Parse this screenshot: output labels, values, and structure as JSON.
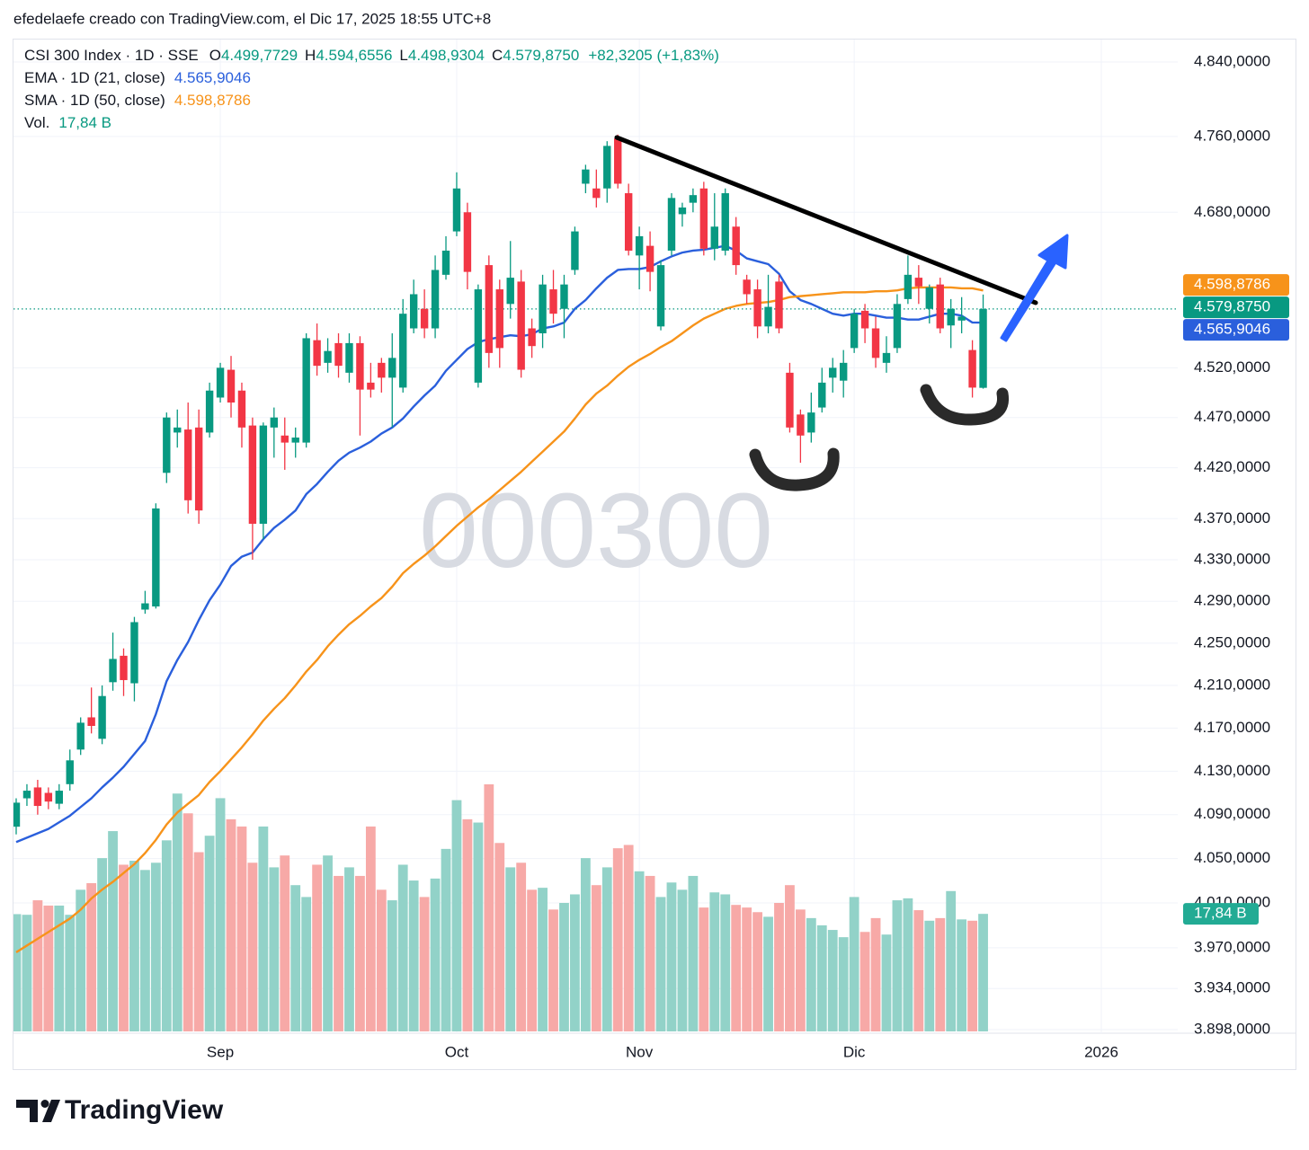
{
  "header": {
    "text": "efedelaefe creado con TradingView.com, el Dic 17, 2025 18:55 UTC+8"
  },
  "footer": {
    "brand": "TradingView"
  },
  "chart_data": {
    "type": "candlestick",
    "title": "CSI 300 Index · 1D · SSE",
    "watermark": "000300",
    "legend_ohlc": [
      {
        "key": "O",
        "label": "4.499,7729"
      },
      {
        "key": "H",
        "label": "4.594,6556"
      },
      {
        "key": "L",
        "label": "4.498,9304"
      },
      {
        "key": "C",
        "label": "4.579,8750"
      }
    ],
    "change_label": "+82,3205 (+1,83%)",
    "up_color": "#089981",
    "down_color": "#f23645",
    "up_volume_color": "#92d2c8",
    "down_volume_color": "#f7a9a7",
    "ylog": true,
    "grid": true,
    "ylim": [
      3898,
      4840
    ],
    "yticks": [
      {
        "value": 4840,
        "label": "4.840,0000"
      },
      {
        "value": 4760,
        "label": "4.760,0000"
      },
      {
        "value": 4680,
        "label": "4.680,0000"
      },
      {
        "value": 4520,
        "label": "4.520,0000"
      },
      {
        "value": 4470,
        "label": "4.470,0000"
      },
      {
        "value": 4420,
        "label": "4.420,0000"
      },
      {
        "value": 4370,
        "label": "4.370,0000"
      },
      {
        "value": 4330,
        "label": "4.330,0000"
      },
      {
        "value": 4290,
        "label": "4.290,0000"
      },
      {
        "value": 4250,
        "label": "4.250,0000"
      },
      {
        "value": 4210,
        "label": "4.210,0000"
      },
      {
        "value": 4170,
        "label": "4.170,0000"
      },
      {
        "value": 4130,
        "label": "4.130,0000"
      },
      {
        "value": 4090,
        "label": "4.090,0000"
      },
      {
        "value": 4050,
        "label": "4.050,0000"
      },
      {
        "value": 4010,
        "label": "4.010,0000"
      },
      {
        "value": 3970,
        "label": "3.970,0000"
      },
      {
        "value": 3934,
        "label": "3.934,0000"
      },
      {
        "value": 3898,
        "label": "3.898,0000"
      }
    ],
    "categories": [
      null,
      null,
      null,
      null,
      null,
      null,
      null,
      null,
      null,
      null,
      null,
      null,
      null,
      null,
      null,
      null,
      null,
      null,
      null,
      "Sep",
      null,
      null,
      null,
      null,
      null,
      null,
      null,
      null,
      null,
      null,
      null,
      null,
      null,
      null,
      null,
      null,
      null,
      null,
      null,
      null,
      null,
      "Oct",
      null,
      null,
      null,
      null,
      null,
      null,
      null,
      null,
      null,
      null,
      null,
      null,
      null,
      null,
      null,
      null,
      "Nov",
      null,
      null,
      null,
      null,
      null,
      null,
      null,
      null,
      null,
      null,
      null,
      null,
      null,
      null,
      null,
      null,
      null,
      null,
      null,
      "Dic",
      null,
      null,
      null,
      null,
      null,
      null,
      null,
      null,
      null,
      null,
      null,
      null,
      null,
      null,
      null,
      null,
      null,
      null,
      null,
      null,
      null,
      null,
      "2026"
    ],
    "open": [
      4079,
      4105,
      4115,
      4110,
      4100,
      4118,
      4150,
      4180,
      4160,
      4213,
      4238,
      4212,
      4282,
      4285,
      4415,
      4455,
      4458,
      4460,
      4455,
      4490,
      4518,
      4497,
      4462,
      4365,
      4460,
      4452,
      4445,
      4445,
      4548,
      4525,
      4545,
      4515,
      4545,
      4505,
      4525,
      4510,
      4500,
      4560,
      4580,
      4560,
      4615,
      4660,
      4680,
      4505,
      4625,
      4600,
      4585,
      4608,
      4560,
      4555,
      4600,
      4580,
      4620,
      4710,
      4705,
      4705,
      4758,
      4700,
      4635,
      4645,
      4562,
      4640,
      4678,
      4690,
      4705,
      4642,
      4640,
      4665,
      4610,
      4600,
      4562,
      4608,
      4515,
      4473,
      4455,
      4480,
      4510,
      4507,
      4540,
      4578,
      4560,
      4525,
      4540,
      4590,
      4612,
      4580,
      4605,
      4563,
      4568,
      4538,
      4499.7729,
      null,
      null,
      null,
      null,
      null,
      null,
      null,
      null,
      null,
      null,
      null
    ],
    "high": [
      4105,
      4118,
      4122,
      4115,
      4118,
      4150,
      4180,
      4208,
      4210,
      4260,
      4245,
      4275,
      4300,
      4385,
      4475,
      4478,
      4485,
      4478,
      4505,
      4525,
      4532,
      4505,
      4470,
      4465,
      4480,
      4470,
      4460,
      4555,
      4565,
      4550,
      4555,
      4555,
      4552,
      4525,
      4530,
      4555,
      4590,
      4610,
      4600,
      4635,
      4655,
      4722,
      4690,
      4605,
      4635,
      4610,
      4650,
      4620,
      4570,
      4615,
      4620,
      4615,
      4665,
      4730,
      4725,
      4755,
      4762,
      4710,
      4665,
      4660,
      4630,
      4700,
      4690,
      4705,
      4712,
      4700,
      4705,
      4675,
      4615,
      4610,
      4615,
      4615,
      4525,
      4478,
      4495,
      4520,
      4530,
      4538,
      4580,
      4585,
      4572,
      4552,
      4595,
      4635,
      4625,
      4605,
      4612,
      4590,
      4592,
      4548,
      4594.6556,
      null,
      null,
      null,
      null,
      null,
      null,
      null,
      null,
      null,
      null,
      null
    ],
    "low": [
      4072,
      4098,
      4090,
      4095,
      4095,
      4112,
      4145,
      4165,
      4155,
      4205,
      4200,
      4195,
      4278,
      4283,
      4405,
      4440,
      4375,
      4365,
      4450,
      4485,
      4470,
      4440,
      4330,
      4350,
      4430,
      4418,
      4430,
      4440,
      4512,
      4515,
      4510,
      4505,
      4452,
      4490,
      4495,
      4460,
      4495,
      4555,
      4550,
      4550,
      4610,
      4655,
      4600,
      4500,
      4520,
      4520,
      4570,
      4510,
      4530,
      4540,
      4565,
      4550,
      4615,
      4700,
      4685,
      4690,
      4705,
      4635,
      4600,
      4598,
      4558,
      4635,
      4665,
      4680,
      4635,
      4630,
      4635,
      4615,
      4585,
      4550,
      4555,
      4555,
      4455,
      4425,
      4445,
      4475,
      4495,
      4490,
      4535,
      4545,
      4520,
      4515,
      4535,
      4585,
      4585,
      4565,
      4555,
      4540,
      4555,
      4490,
      4498.9304,
      null,
      null,
      null,
      null,
      null,
      null,
      null,
      null,
      null,
      null,
      null
    ],
    "close": [
      4101,
      4112,
      4098,
      4102,
      4112,
      4140,
      4175,
      4172,
      4200,
      4235,
      4215,
      4270,
      4288,
      4380,
      4470,
      4460,
      4388,
      4378,
      4497,
      4520,
      4485,
      4460,
      4365,
      4462,
      4470,
      4445,
      4450,
      4550,
      4522,
      4537,
      4522,
      4545,
      4498,
      4498,
      4510,
      4530,
      4575,
      4595,
      4560,
      4620,
      4640,
      4705,
      4618,
      4600,
      4535,
      4540,
      4612,
      4518,
      4542,
      4605,
      4575,
      4605,
      4660,
      4725,
      4695,
      4750,
      4710,
      4640,
      4655,
      4618,
      4625,
      4695,
      4685,
      4698,
      4642,
      4665,
      4700,
      4625,
      4595,
      4562,
      4582,
      4560,
      4460,
      4452,
      4475,
      4505,
      4520,
      4525,
      4575,
      4560,
      4530,
      4535,
      4585,
      4615,
      4603,
      4602,
      4560,
      4580,
      4572,
      4500,
      4579.875,
      null,
      null,
      null,
      null,
      null,
      null,
      null,
      null,
      null,
      null,
      null
    ],
    "close_label": "4.579,8750",
    "volume": {
      "name": "Vol.",
      "value_label": "17,84 B",
      "values": [
        17.8,
        17.7,
        19.9,
        19.1,
        19.1,
        17.7,
        21.5,
        22.5,
        26.3,
        30.4,
        25.3,
        25.9,
        24.5,
        25.6,
        29.0,
        36.1,
        33.1,
        27.2,
        29.7,
        35.4,
        32.2,
        31.1,
        25.6,
        31.1,
        24.9,
        26.7,
        22.2,
        20.4,
        25.3,
        26.7,
        23.6,
        24.9,
        23.6,
        31.1,
        21.5,
        19.9,
        25.3,
        22.9,
        20.4,
        23.2,
        27.7,
        35.1,
        32.2,
        31.7,
        37.5,
        28.6,
        24.9,
        25.6,
        21.5,
        21.8,
        18.5,
        19.5,
        20.8,
        26.3,
        22.2,
        24.9,
        27.8,
        28.3,
        24.3,
        23.6,
        20.4,
        22.6,
        21.5,
        23.6,
        18.8,
        21.1,
        20.8,
        19.2,
        18.8,
        18.1,
        17.4,
        19.5,
        22.2,
        18.5,
        17.2,
        16.1,
        15.4,
        14.3,
        20.4,
        15.1,
        17.2,
        14.7,
        19.9,
        20.2,
        18.4,
        16.8,
        17.2,
        21.3,
        17.0,
        16.8,
        17.84,
        null,
        null,
        null,
        null,
        null,
        null,
        null,
        null,
        null,
        null,
        null
      ]
    },
    "series": [
      {
        "name": "EMA · 1D (21, close)",
        "color": "#2a5fdc",
        "value_label": "4.565,9046",
        "values": [
          4065,
          4069,
          4073,
          4077,
          4083,
          4089,
          4097,
          4105,
          4115,
          4124,
          4134,
          4146,
          4158,
          4183,
          4214,
          4234,
          4251,
          4272,
          4291,
          4306,
          4324,
          4333,
          4337,
          4350,
          4361,
          4369,
          4378,
          4394,
          4404,
          4416,
          4427,
          4435,
          4440,
          4446,
          4454,
          4460,
          4469,
          4481,
          4492,
          4502,
          4517,
          4528,
          4539,
          4546,
          4549,
          4551,
          4553,
          4552,
          4554,
          4560,
          4562,
          4566,
          4580,
          4589,
          4601,
          4612,
          4620,
          4621,
          4621,
          4623,
          4629,
          4634,
          4638,
          4640,
          4641,
          4643,
          4645,
          4640,
          4632,
          4629,
          4626,
          4616,
          4598,
          4589,
          4585,
          4580,
          4575,
          4573,
          4575,
          4575,
          4573,
          4571,
          4571,
          4569,
          4569,
          4572,
          4575,
          4575,
          4573,
          4566,
          4565.9046,
          null,
          null,
          null,
          null,
          null,
          null,
          null,
          null,
          null,
          null,
          null
        ]
      },
      {
        "name": "SMA · 1D (50, close)",
        "color": "#f7931a",
        "value_label": "4.598,8786",
        "values": [
          3966,
          3972,
          3978,
          3984,
          3990,
          3996,
          4004,
          4014,
          4022,
          4029,
          4037,
          4045,
          4055,
          4067,
          4081,
          4092,
          4100,
          4108,
          4120,
          4130,
          4141,
          4152,
          4164,
          4177,
          4188,
          4198,
          4210,
          4223,
          4234,
          4247,
          4258,
          4268,
          4276,
          4285,
          4293,
          4304,
          4317,
          4326,
          4334,
          4343,
          4353,
          4363,
          4372,
          4381,
          4389,
          4398,
          4407,
          4416,
          4426,
          4436,
          4446,
          4456,
          4469,
          4483,
          4494,
          4502,
          4512,
          4521,
          4528,
          4534,
          4541,
          4547,
          4555,
          4563,
          4570,
          4575,
          4580,
          4583,
          4585,
          4586,
          4587,
          4589,
          4592,
          4593,
          4594,
          4595,
          4596,
          4597,
          4597,
          4597,
          4598,
          4598,
          4599,
          4601,
          4602,
          4602,
          4602,
          4602,
          4601,
          4601,
          4598.8786,
          null,
          null,
          null,
          null,
          null,
          null,
          null,
          null,
          null,
          null,
          null
        ]
      }
    ]
  }
}
